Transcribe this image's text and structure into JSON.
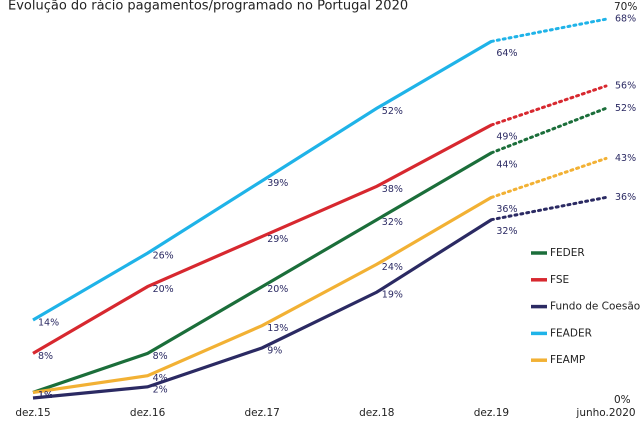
{
  "chart_data": {
    "type": "line",
    "title": "Evolução do rácio pagamentos/programado no Portugal 2020",
    "categories": [
      "dez.15",
      "dez.16",
      "dez.17",
      "dez.18",
      "dez.19",
      "junho.2020"
    ],
    "ylim": [
      0,
      70
    ],
    "yticks": [
      {
        "value": 0,
        "label": "0%"
      },
      {
        "value": 70,
        "label": "70%"
      }
    ],
    "dotted_last_segment": true,
    "legend": "right",
    "series": [
      {
        "name": "FEDER",
        "color": "#1b6e3a",
        "values": [
          1,
          8,
          20,
          32,
          44,
          52
        ],
        "value_labels": [
          "1%",
          "8%",
          "20%",
          "32%",
          "44%",
          "52%"
        ]
      },
      {
        "name": "FSE",
        "color": "#d7282f",
        "values": [
          8,
          20,
          29,
          38,
          49,
          56
        ],
        "value_labels": [
          "8%",
          "20%",
          "29%",
          "38%",
          "49%",
          "56%"
        ]
      },
      {
        "name": "Fundo de Coesão",
        "color": "#2b2a63",
        "values": [
          0,
          2,
          9,
          19,
          32,
          36
        ],
        "value_labels": [
          null,
          "2%",
          "9%",
          "19%",
          "32%",
          "36%"
        ]
      },
      {
        "name": "FEADER",
        "color": "#1fb3e8",
        "values": [
          14,
          26,
          39,
          52,
          64,
          68
        ],
        "value_labels": [
          "14%",
          "26%",
          "39%",
          "52%",
          "64%",
          "68%"
        ]
      },
      {
        "name": "FEAMP",
        "color": "#f2b134",
        "values": [
          1,
          4,
          13,
          24,
          36,
          43
        ],
        "value_labels": [
          "1%",
          "4%",
          "13%",
          "24%",
          "36%",
          "43%"
        ]
      }
    ]
  }
}
